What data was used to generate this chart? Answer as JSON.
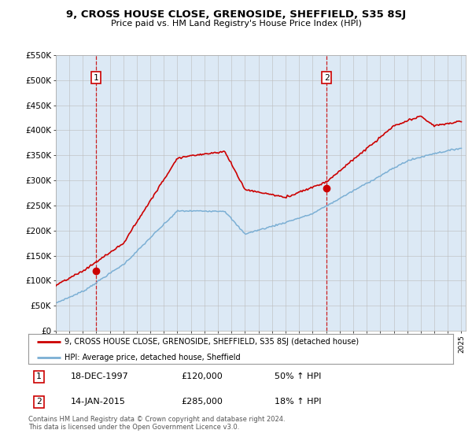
{
  "title": "9, CROSS HOUSE CLOSE, GRENOSIDE, SHEFFIELD, S35 8SJ",
  "subtitle": "Price paid vs. HM Land Registry's House Price Index (HPI)",
  "ylim": [
    0,
    550000
  ],
  "yticks": [
    0,
    50000,
    100000,
    150000,
    200000,
    250000,
    300000,
    350000,
    400000,
    450000,
    500000,
    550000
  ],
  "ytick_labels": [
    "£0",
    "£50K",
    "£100K",
    "£150K",
    "£200K",
    "£250K",
    "£300K",
    "£350K",
    "£400K",
    "£450K",
    "£500K",
    "£550K"
  ],
  "xlim_start": 1995.0,
  "xlim_end": 2025.3,
  "sale1_x": 1997.97,
  "sale1_y": 120000,
  "sale2_x": 2015.04,
  "sale2_y": 285000,
  "property_color": "#cc0000",
  "hpi_color": "#7bafd4",
  "chart_bg": "#dce9f5",
  "dashed_line_color": "#cc0000",
  "legend_property_label": "9, CROSS HOUSE CLOSE, GRENOSIDE, SHEFFIELD, S35 8SJ (detached house)",
  "legend_hpi_label": "HPI: Average price, detached house, Sheffield",
  "annotation1_date": "18-DEC-1997",
  "annotation1_price": "£120,000",
  "annotation1_pct": "50% ↑ HPI",
  "annotation2_date": "14-JAN-2015",
  "annotation2_price": "£285,000",
  "annotation2_pct": "18% ↑ HPI",
  "footer": "Contains HM Land Registry data © Crown copyright and database right 2024.\nThis data is licensed under the Open Government Licence v3.0.",
  "background_color": "#ffffff",
  "grid_color": "#bbbbbb"
}
